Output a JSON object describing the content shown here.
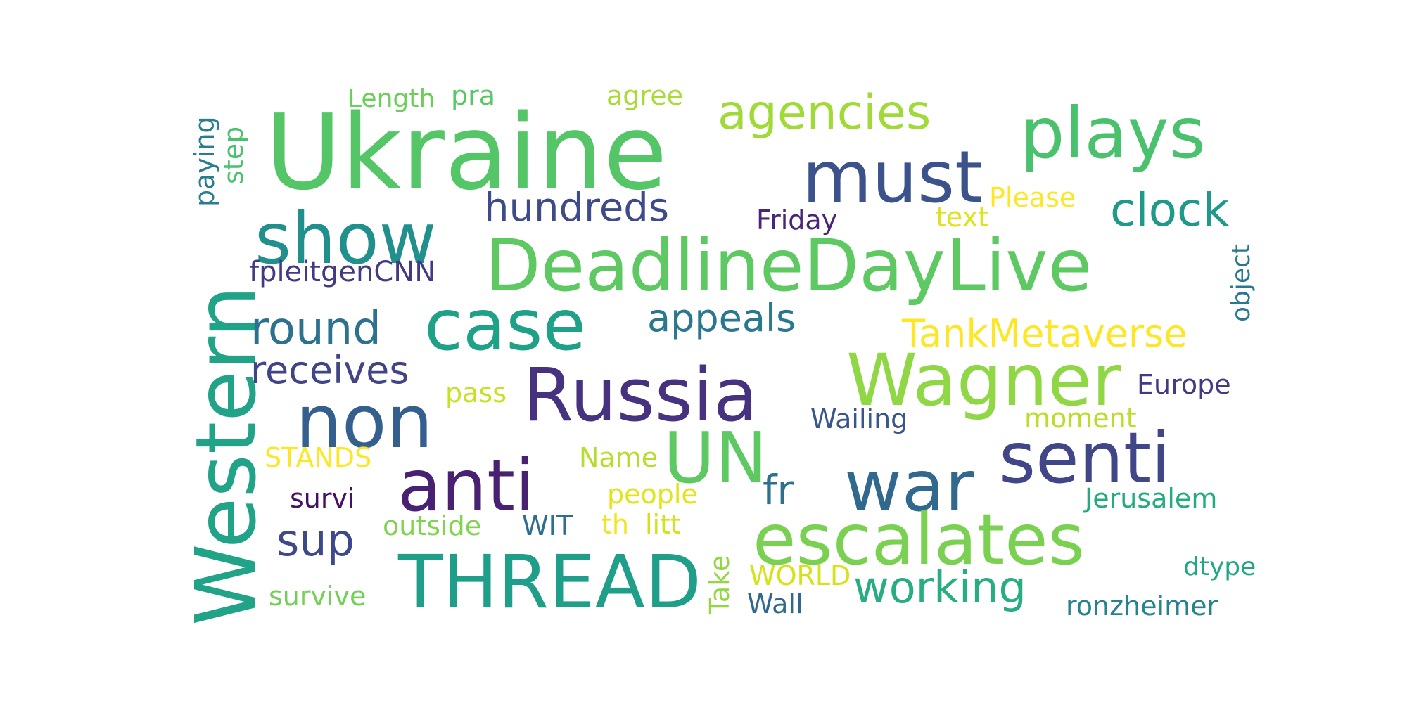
{
  "words": [
    {
      "text": "Ukraine",
      "color": "#55c667"
    },
    {
      "text": "DeadlineDayLive",
      "color": "#5ec962"
    },
    {
      "text": "Western",
      "color": "#20a386"
    },
    {
      "text": "plays",
      "color": "#4ac16d"
    },
    {
      "text": "must",
      "color": "#3b528b"
    },
    {
      "text": "show",
      "color": "#21908d"
    },
    {
      "text": "case",
      "color": "#1fa188"
    },
    {
      "text": "agencies",
      "color": "#a0da39"
    },
    {
      "text": "Russia",
      "color": "#46327e"
    },
    {
      "text": "Wagner",
      "color": "#8fd744"
    },
    {
      "text": "non",
      "color": "#355f8d"
    },
    {
      "text": "anti",
      "color": "#482173"
    },
    {
      "text": "UN",
      "color": "#5ec962"
    },
    {
      "text": "senti",
      "color": "#404688"
    },
    {
      "text": "war",
      "color": "#31688e"
    },
    {
      "text": "escalates",
      "color": "#7ad151"
    },
    {
      "text": "THREAD",
      "color": "#1f9e89"
    },
    {
      "text": "hundreds",
      "color": "#3e4a89"
    },
    {
      "text": "clock",
      "color": "#1f9a8a"
    },
    {
      "text": "round",
      "color": "#2c728e"
    },
    {
      "text": "appeals",
      "color": "#2a788e"
    },
    {
      "text": "TankMetaverse",
      "color": "#fde725"
    },
    {
      "text": "receives",
      "color": "#414487"
    },
    {
      "text": "working",
      "color": "#27ad81"
    },
    {
      "text": "sup",
      "color": "#3e4989"
    },
    {
      "text": "fr",
      "color": "#2d708e"
    },
    {
      "text": "fpleitgenCNN",
      "color": "#443a83"
    },
    {
      "text": "Friday",
      "color": "#482576"
    },
    {
      "text": "Please",
      "color": "#fde725"
    },
    {
      "text": "text",
      "color": "#dde318"
    },
    {
      "text": "agree",
      "color": "#a8db34"
    },
    {
      "text": "Length",
      "color": "#6ccd5a"
    },
    {
      "text": "pra",
      "color": "#58c765"
    },
    {
      "text": "paying",
      "color": "#287d8e"
    },
    {
      "text": "step",
      "color": "#4ac16d"
    },
    {
      "text": "object",
      "color": "#2a788e"
    },
    {
      "text": "pass",
      "color": "#c8e020"
    },
    {
      "text": "Europe",
      "color": "#443983"
    },
    {
      "text": "Wailing",
      "color": "#39568c"
    },
    {
      "text": "moment",
      "color": "#bade28"
    },
    {
      "text": "STANDS",
      "color": "#fde725"
    },
    {
      "text": "Name",
      "color": "#b5de2b"
    },
    {
      "text": "survi",
      "color": "#471063"
    },
    {
      "text": "people",
      "color": "#e2e418"
    },
    {
      "text": "Jerusalem",
      "color": "#25ab82"
    },
    {
      "text": "outside",
      "color": "#7fd34e"
    },
    {
      "text": "WIT",
      "color": "#2e6e8e"
    },
    {
      "text": "th",
      "color": "#f1e51d"
    },
    {
      "text": "litt",
      "color": "#d2e21b"
    },
    {
      "text": "Take",
      "color": "#93d741"
    },
    {
      "text": "WORLD",
      "color": "#d5e21a"
    },
    {
      "text": "Wall",
      "color": "#30698e"
    },
    {
      "text": "dtype",
      "color": "#22a785"
    },
    {
      "text": "survive",
      "color": "#73d056"
    },
    {
      "text": "ronzheimer",
      "color": "#26828e"
    }
  ]
}
